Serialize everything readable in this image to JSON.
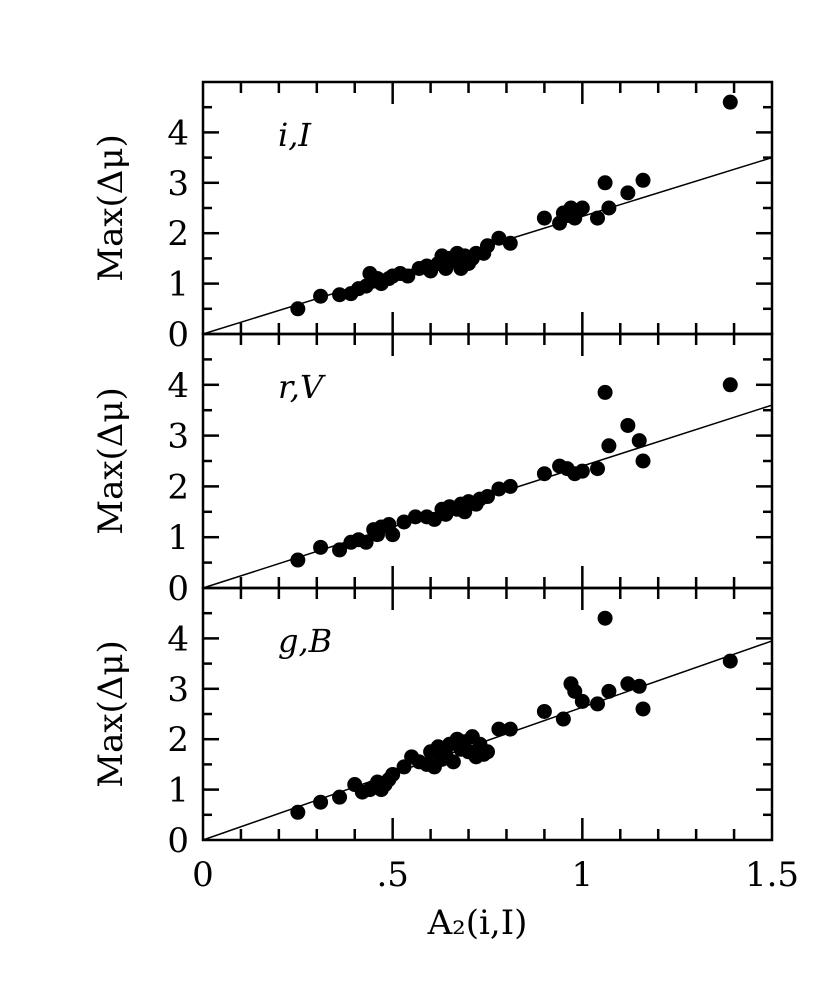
{
  "chart_data": [
    {
      "type": "scatter",
      "panel_label": "i,I",
      "ylabel": "Max(Δμ)",
      "xlabel": "",
      "xlim": [
        0,
        1.5
      ],
      "ylim": [
        0,
        5
      ],
      "y_ticks": [
        "0",
        "1",
        "2",
        "3",
        "4"
      ],
      "fit_line": {
        "x": [
          0,
          1.5
        ],
        "y": [
          0,
          3.5
        ]
      },
      "series": [
        {
          "x": [
            0.25,
            0.31,
            0.36,
            0.39,
            0.41,
            0.43,
            0.44,
            0.45,
            0.46,
            0.47,
            0.49,
            0.5,
            0.52,
            0.54,
            0.57,
            0.59,
            0.6,
            0.62,
            0.63,
            0.64,
            0.65,
            0.66,
            0.67,
            0.68,
            0.69,
            0.7,
            0.71,
            0.72,
            0.74,
            0.75,
            0.78,
            0.81,
            0.9,
            0.94,
            0.95,
            0.96,
            0.97,
            0.98,
            0.99,
            1.0,
            1.04,
            1.06,
            1.07,
            1.12,
            1.16,
            1.39
          ],
          "y": [
            0.5,
            0.75,
            0.78,
            0.8,
            0.9,
            0.95,
            1.2,
            1.05,
            1.1,
            1.0,
            1.1,
            1.15,
            1.2,
            1.15,
            1.3,
            1.35,
            1.25,
            1.4,
            1.55,
            1.3,
            1.5,
            1.45,
            1.6,
            1.3,
            1.55,
            1.4,
            1.5,
            1.6,
            1.6,
            1.75,
            1.9,
            1.8,
            2.3,
            2.2,
            2.4,
            2.35,
            2.5,
            2.3,
            2.45,
            2.5,
            2.3,
            3.0,
            2.5,
            2.8,
            3.05,
            4.6
          ]
        }
      ]
    },
    {
      "type": "scatter",
      "panel_label": "r,V",
      "ylabel": "Max(Δμ)",
      "xlabel": "",
      "xlim": [
        0,
        1.5
      ],
      "ylim": [
        0,
        5
      ],
      "y_ticks": [
        "0",
        "1",
        "2",
        "3",
        "4"
      ],
      "fit_line": {
        "x": [
          0,
          1.5
        ],
        "y": [
          0,
          3.6
        ]
      },
      "series": [
        {
          "x": [
            0.25,
            0.31,
            0.36,
            0.39,
            0.41,
            0.43,
            0.45,
            0.46,
            0.47,
            0.49,
            0.5,
            0.53,
            0.56,
            0.59,
            0.61,
            0.63,
            0.64,
            0.65,
            0.67,
            0.68,
            0.69,
            0.7,
            0.72,
            0.73,
            0.75,
            0.78,
            0.81,
            0.9,
            0.94,
            0.96,
            0.98,
            1.0,
            1.04,
            1.06,
            1.07,
            1.12,
            1.15,
            1.16,
            1.39
          ],
          "y": [
            0.55,
            0.8,
            0.75,
            0.9,
            0.95,
            0.9,
            1.15,
            1.05,
            1.2,
            1.25,
            1.05,
            1.3,
            1.4,
            1.4,
            1.35,
            1.55,
            1.45,
            1.6,
            1.55,
            1.65,
            1.5,
            1.7,
            1.65,
            1.75,
            1.8,
            1.95,
            2.0,
            2.25,
            2.4,
            2.35,
            2.25,
            2.3,
            2.35,
            3.85,
            2.8,
            3.2,
            2.9,
            2.5,
            4.0
          ]
        }
      ]
    },
    {
      "type": "scatter",
      "panel_label": "g,B",
      "ylabel": "Max(Δμ)",
      "xlabel": "A₂(i,I)",
      "xlim": [
        0,
        1.5
      ],
      "ylim": [
        0,
        5
      ],
      "y_ticks": [
        "0",
        "1",
        "2",
        "3",
        "4"
      ],
      "x_ticks": [
        "0",
        ".5",
        "1",
        "1.5"
      ],
      "fit_line": {
        "x": [
          0,
          1.5
        ],
        "y": [
          0,
          3.95
        ]
      },
      "series": [
        {
          "x": [
            0.25,
            0.31,
            0.36,
            0.4,
            0.42,
            0.44,
            0.45,
            0.46,
            0.47,
            0.48,
            0.49,
            0.5,
            0.53,
            0.55,
            0.57,
            0.59,
            0.6,
            0.61,
            0.62,
            0.63,
            0.64,
            0.65,
            0.66,
            0.67,
            0.68,
            0.69,
            0.7,
            0.71,
            0.72,
            0.73,
            0.74,
            0.75,
            0.78,
            0.81,
            0.9,
            0.95,
            0.97,
            0.98,
            1.0,
            1.04,
            1.06,
            1.07,
            1.12,
            1.15,
            1.16,
            1.39
          ],
          "y": [
            0.55,
            0.75,
            0.85,
            1.1,
            0.95,
            1.0,
            1.05,
            1.15,
            1.0,
            1.1,
            1.2,
            1.3,
            1.45,
            1.65,
            1.55,
            1.5,
            1.75,
            1.45,
            1.85,
            1.6,
            1.7,
            1.9,
            1.55,
            2.0,
            1.8,
            1.95,
            1.75,
            2.05,
            1.65,
            1.9,
            1.7,
            1.75,
            2.2,
            2.2,
            2.55,
            2.4,
            3.1,
            2.95,
            2.75,
            2.7,
            4.4,
            2.95,
            3.1,
            3.05,
            2.6,
            3.55
          ]
        }
      ]
    }
  ]
}
